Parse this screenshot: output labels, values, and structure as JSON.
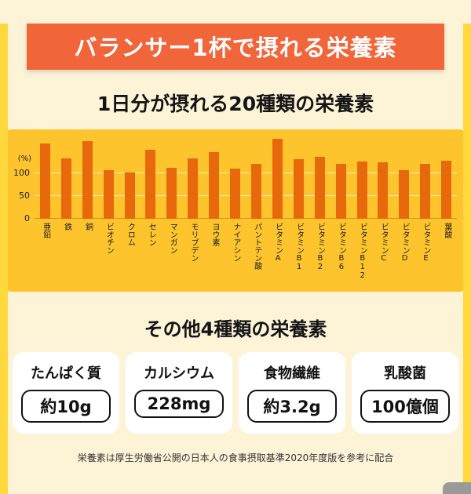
{
  "banner": {
    "title": "バランサー1杯で摂れる栄養素"
  },
  "chart_section": {
    "title": "1日分が摂れる20種類の栄養素"
  },
  "chart_data": {
    "type": "bar",
    "categories": [
      "亜鉛",
      "鉄",
      "銅",
      "ビオチン",
      "クロム",
      "セレン",
      "マンガン",
      "モリブデン",
      "ヨウ素",
      "ナイアシン",
      "パントテン酸",
      "ビタミンA",
      "ビタミンB1",
      "ビタミンB2",
      "ビタミンB6",
      "ビタミンB12",
      "ビタミンC",
      "ビタミンD",
      "ビタミンE",
      "葉酸"
    ],
    "values": [
      167,
      133,
      172,
      107,
      103,
      153,
      112,
      134,
      147,
      110,
      121,
      176,
      131,
      136,
      121,
      126,
      124,
      107,
      121,
      128
    ],
    "title": "1日分が摂れる20種類の栄養素",
    "xlabel": "",
    "ylabel": "(%)",
    "yticks": [
      0,
      50,
      100
    ],
    "ylim": [
      0,
      180
    ],
    "grid": true,
    "legend": "none",
    "bar_color": "#e8690b",
    "panel_color": "#fdc42d"
  },
  "other_section": {
    "title": "その他4種類の栄養素",
    "cards": [
      {
        "label": "たんぱく質",
        "value": "約10g"
      },
      {
        "label": "カルシウム",
        "value": "228mg"
      },
      {
        "label": "食物繊維",
        "value": "約3.2g"
      },
      {
        "label": "乳酸菌",
        "value": "100億個"
      }
    ]
  },
  "footnote": "栄養素は厚生労働省公開の日本人の食事摂取基準2020年度版を参考に配合",
  "colors": {
    "page_bg": "#fdf4d8",
    "stripe": "#ffd83d",
    "banner_bg": "#f1653a",
    "chart_bg": "#fdc42d",
    "bar": "#e8690b"
  }
}
